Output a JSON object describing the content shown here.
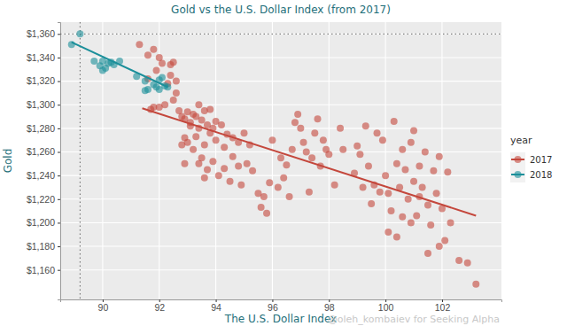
{
  "chart_data": {
    "type": "scatter",
    "title": "Gold vs the U.S. Dollar Index (from 2017)",
    "x_label": "The U.S. Dollar Index",
    "y_label": "Gold",
    "legend_title": "year",
    "annotation": "@oleh_kombaiev for Seeking Alpha",
    "xlim": [
      88.5,
      104.1
    ],
    "ylim": [
      1135,
      1370
    ],
    "xticks": [
      90,
      92,
      94,
      96,
      98,
      100,
      102
    ],
    "yticks": [
      {
        "value": 1160,
        "label": "$1,160"
      },
      {
        "value": 1180,
        "label": "$1,180"
      },
      {
        "value": 1200,
        "label": "$1,200"
      },
      {
        "value": 1220,
        "label": "$1,220"
      },
      {
        "value": 1240,
        "label": "$1,240"
      },
      {
        "value": 1260,
        "label": "$1,260"
      },
      {
        "value": 1280,
        "label": "$1,280"
      },
      {
        "value": 1300,
        "label": "$1,300"
      },
      {
        "value": 1320,
        "label": "$1,320"
      },
      {
        "value": 1340,
        "label": "$1,340"
      },
      {
        "value": 1360,
        "label": "$1,360"
      }
    ],
    "grid": true,
    "legend": "right",
    "marker": "circle",
    "reference_lines": {
      "x": 89.2,
      "y": 1360
    },
    "series": [
      {
        "name": "2017",
        "color": "#c4473c",
        "x": [
          91.3,
          91.6,
          91.8,
          91.9,
          92.0,
          91.6,
          91.8,
          92.0,
          92.2,
          92.4,
          92.5,
          92.4,
          92.5,
          92.3,
          92.6,
          91.7,
          92.1,
          92.6,
          92.7,
          92.8,
          92.9,
          93.0,
          93.1,
          93.2,
          93.3,
          93.4,
          93.5,
          93.6,
          93.7,
          93.8,
          93.9,
          94.0,
          94.2,
          94.4,
          94.6,
          94.8,
          95.0,
          95.2,
          92.8,
          93.0,
          92.9,
          93.2,
          93.4,
          93.5,
          93.7,
          93.9,
          94.1,
          94.3,
          94.6,
          94.8,
          95.1,
          93.1,
          93.4,
          93.8,
          94.0,
          94.3,
          93.6,
          94.5,
          94.9,
          93.3,
          93.6,
          92.9,
          95.3,
          95.5,
          95.6,
          95.7,
          95.8,
          95.9,
          96.2,
          96.0,
          96.3,
          96.5,
          96.7,
          96.8,
          96.9,
          97.0,
          97.1,
          97.2,
          97.4,
          97.5,
          97.6,
          97.7,
          97.9,
          98.0,
          98.2,
          98.4,
          97.3,
          96.6,
          98.5,
          97.8,
          96.4,
          98.9,
          99.0,
          99.1,
          99.3,
          99.4,
          99.6,
          99.8,
          99.7,
          100.0,
          100.1,
          100.2,
          100.3,
          100.4,
          100.5,
          100.6,
          100.7,
          100.8,
          100.9,
          101.0,
          101.1,
          101.2,
          101.3,
          101.4,
          101.5,
          101.6,
          101.7,
          101.8,
          101.9,
          102.0,
          102.1,
          102.2,
          102.3,
          101.5,
          101.9,
          102.6,
          102.9,
          103.2,
          100.1,
          100.4,
          99.5,
          100.9,
          101.0,
          100.6,
          99.2,
          101.2,
          99.9
        ],
        "values": [
          1351,
          1342,
          1347,
          1329,
          1340,
          1322,
          1298,
          1298,
          1300,
          1334,
          1336,
          1325,
          1304,
          1318,
          1310,
          1296,
          1335,
          1320,
          1295,
          1290,
          1288,
          1294,
          1285,
          1292,
          1290,
          1280,
          1287,
          1295,
          1283,
          1276,
          1280,
          1270,
          1283,
          1275,
          1272,
          1268,
          1276,
          1266,
          1266,
          1268,
          1272,
          1262,
          1250,
          1255,
          1245,
          1252,
          1240,
          1246,
          1256,
          1248,
          1250,
          1282,
          1300,
          1296,
          1286,
          1264,
          1238,
          1235,
          1232,
          1273,
          1266,
          1250,
          1244,
          1225,
          1213,
          1222,
          1208,
          1234,
          1230,
          1270,
          1255,
          1249,
          1262,
          1285,
          1292,
          1280,
          1268,
          1260,
          1255,
          1276,
          1288,
          1248,
          1262,
          1258,
          1232,
          1280,
          1226,
          1222,
          1262,
          1270,
          1238,
          1242,
          1265,
          1258,
          1282,
          1248,
          1232,
          1226,
          1276,
          1240,
          1225,
          1210,
          1286,
          1250,
          1230,
          1262,
          1245,
          1220,
          1268,
          1235,
          1206,
          1248,
          1230,
          1260,
          1215,
          1198,
          1244,
          1225,
          1256,
          1212,
          1185,
          1243,
          1200,
          1174,
          1180,
          1168,
          1166,
          1148,
          1192,
          1188,
          1216,
          1200,
          1278,
          1205,
          1230,
          1222,
          1270
        ],
        "trend": {
          "x": [
            91.4,
            103.2
          ],
          "values": [
            1297,
            1206
          ]
        }
      },
      {
        "name": "2018",
        "color": "#1b8f9a",
        "x": [
          88.9,
          89.2,
          89.7,
          89.9,
          90.0,
          90.1,
          90.2,
          90.3,
          90.0,
          90.6,
          90.4,
          91.2,
          91.5,
          91.6,
          91.5,
          91.9,
          92.0,
          92.1,
          92.2,
          92.3,
          92.0,
          91.8
        ],
        "values": [
          1351,
          1360,
          1337,
          1333,
          1337,
          1331,
          1335,
          1336,
          1329,
          1337,
          1334,
          1324,
          1320,
          1313,
          1312,
          1315,
          1321,
          1323,
          1316,
          1315,
          1313,
          1317
        ],
        "trend": {
          "x": [
            88.9,
            92.3
          ],
          "values": [
            1353,
            1315
          ]
        }
      }
    ]
  }
}
